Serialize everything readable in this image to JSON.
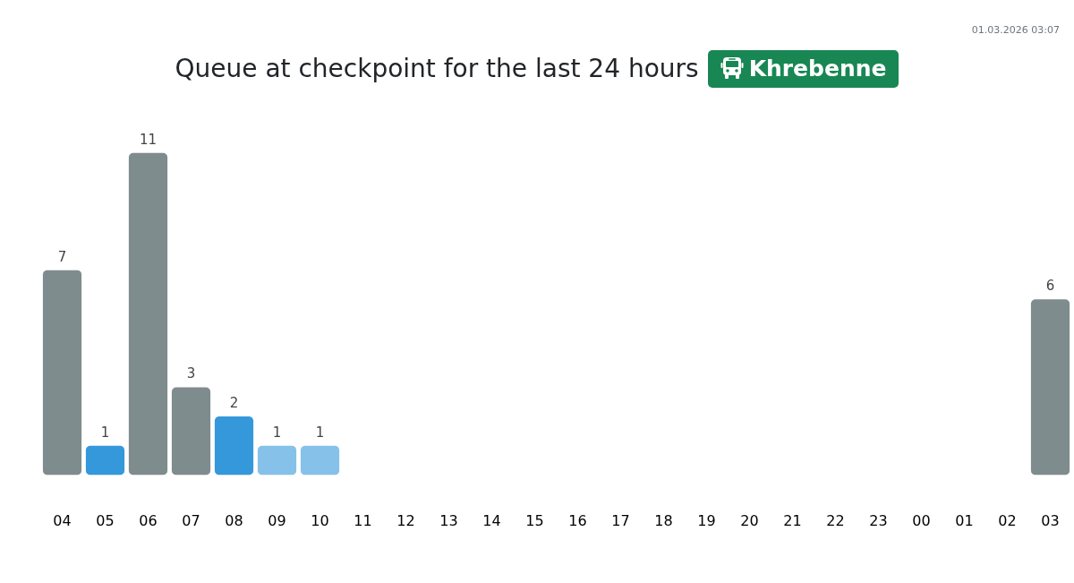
{
  "chart_data": {
    "type": "bar",
    "title": "Queue at checkpoint for the last 24 hours",
    "subtitle": "Khrebenne",
    "annotations": [
      "01.03.2026 03:07"
    ],
    "categories": [
      "04",
      "05",
      "06",
      "07",
      "08",
      "09",
      "10",
      "11",
      "12",
      "13",
      "14",
      "15",
      "16",
      "17",
      "18",
      "19",
      "20",
      "21",
      "22",
      "23",
      "00",
      "01",
      "02",
      "03"
    ],
    "values": [
      7,
      1,
      11,
      3,
      2,
      1,
      1,
      null,
      null,
      null,
      null,
      null,
      null,
      null,
      null,
      null,
      null,
      null,
      null,
      null,
      null,
      null,
      null,
      6
    ],
    "colors": [
      "#7f8c8d",
      "#3498db",
      "#7f8c8d",
      "#7f8c8d",
      "#3498db",
      "#85c1e9",
      "#85c1e9",
      null,
      null,
      null,
      null,
      null,
      null,
      null,
      null,
      null,
      null,
      null,
      null,
      null,
      null,
      null,
      null,
      "#7f8c8d"
    ],
    "data_labels": true,
    "tick_labels": "x",
    "grid": false
  }
}
